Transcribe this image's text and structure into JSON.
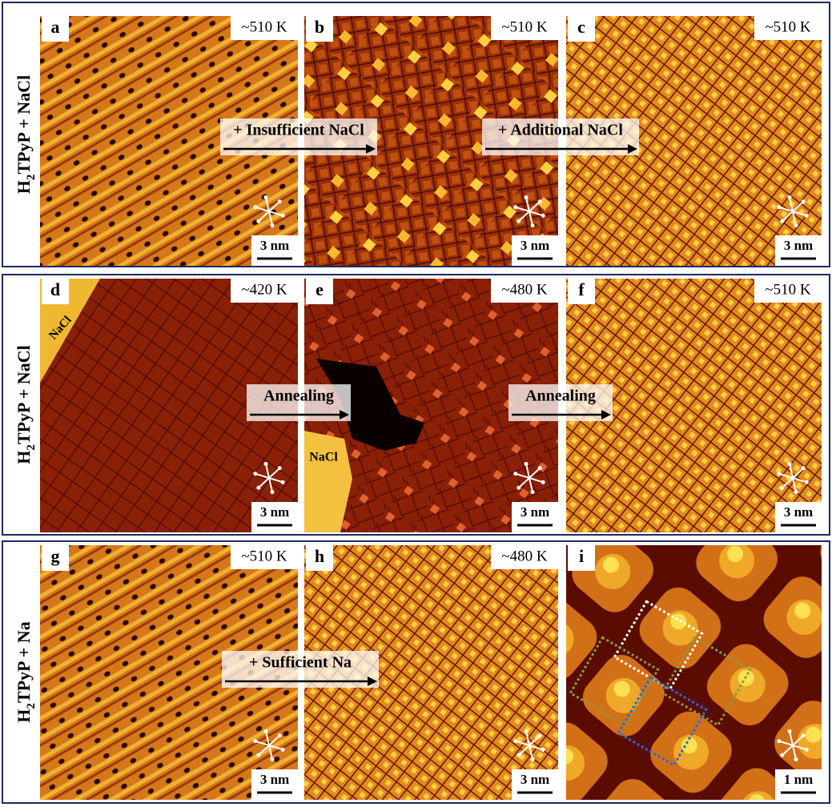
{
  "rows": [
    {
      "label": {
        "main": "H",
        "sub": "2",
        "rest": "TPyP + NaCl"
      },
      "panels": [
        {
          "letter": "a",
          "temperature": "~510 K",
          "scale_bar": "3 nm"
        },
        {
          "letter": "b",
          "temperature": "~510 K",
          "scale_bar": "3 nm"
        },
        {
          "letter": "c",
          "temperature": "~510 K",
          "scale_bar": "3 nm"
        }
      ],
      "arrows": [
        "+ Insufficient NaCl",
        "+ Additional NaCl"
      ]
    },
    {
      "label": {
        "main": "H",
        "sub": "2",
        "rest": "TPyP + NaCl"
      },
      "panels": [
        {
          "letter": "d",
          "temperature": "~420 K",
          "scale_bar": "3 nm",
          "inset_label": "NaCl"
        },
        {
          "letter": "e",
          "temperature": "~480 K",
          "scale_bar": "3 nm",
          "inset_label": "NaCl"
        },
        {
          "letter": "f",
          "temperature": "~510 K",
          "scale_bar": "3 nm"
        }
      ],
      "arrows": [
        "Annealing",
        "Annealing"
      ]
    },
    {
      "label": {
        "main": "H",
        "sub": "2",
        "rest": "TPyP + Na"
      },
      "panels": [
        {
          "letter": "g",
          "temperature": "~510 K",
          "scale_bar": "3 nm"
        },
        {
          "letter": "h",
          "temperature": "~480 K",
          "scale_bar": "3 nm"
        },
        {
          "letter": "i",
          "scale_bar": "1 nm"
        }
      ],
      "arrows": [
        "+ Sufficient Na"
      ]
    }
  ]
}
